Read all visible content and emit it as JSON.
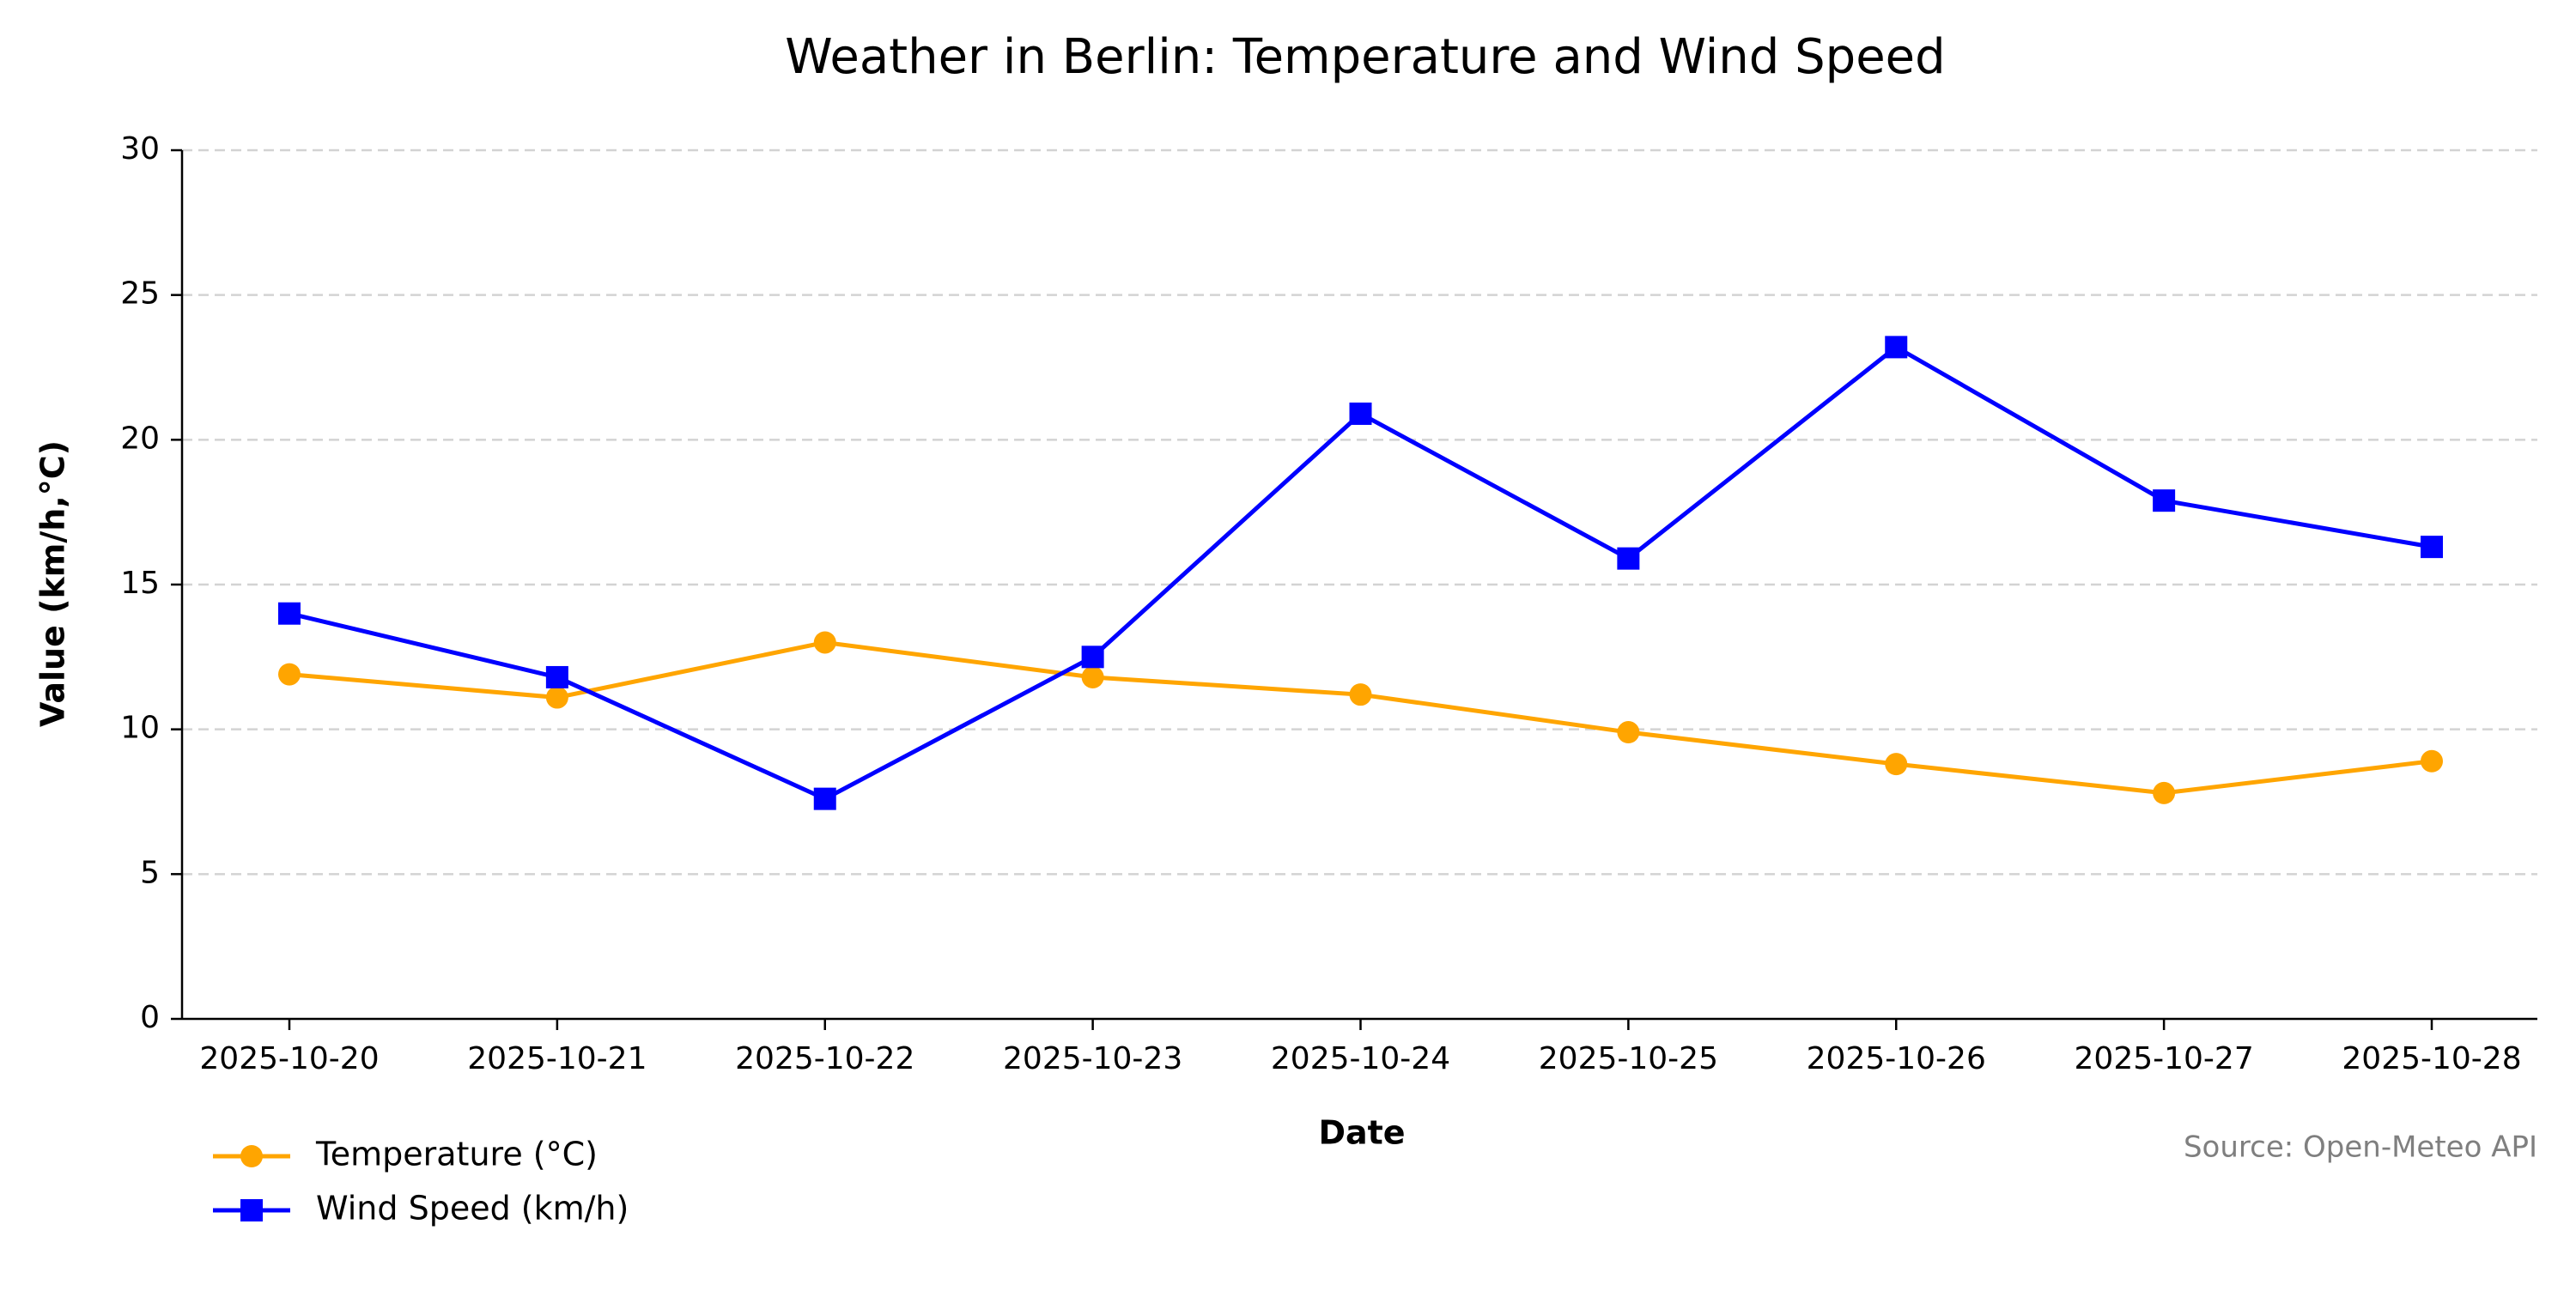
{
  "chart_data": {
    "type": "line",
    "title": "Weather in Berlin: Temperature and Wind Speed",
    "xlabel": "Date",
    "ylabel": "Value (km/h,°C)",
    "x": [
      "2025-10-20",
      "2025-10-21",
      "2025-10-22",
      "2025-10-23",
      "2025-10-24",
      "2025-10-25",
      "2025-10-26",
      "2025-10-27",
      "2025-10-28"
    ],
    "ylim": [
      0,
      30
    ],
    "yticks": [
      0,
      5,
      10,
      15,
      20,
      25,
      30
    ],
    "grid": "horizontal dashed",
    "legend_position": "bottom-left",
    "series": [
      {
        "name": "Temperature (°C)",
        "color": "#FFA500",
        "marker": "circle",
        "values": [
          11.9,
          11.1,
          13.0,
          11.8,
          11.2,
          9.9,
          8.8,
          7.8,
          8.9
        ]
      },
      {
        "name": "Wind Speed (km/h)",
        "color": "#0000FF",
        "marker": "square",
        "values": [
          14.0,
          11.8,
          7.6,
          12.5,
          20.9,
          15.9,
          23.2,
          17.9,
          16.3
        ]
      }
    ],
    "annotation": "Source: Open-Meteo API"
  }
}
